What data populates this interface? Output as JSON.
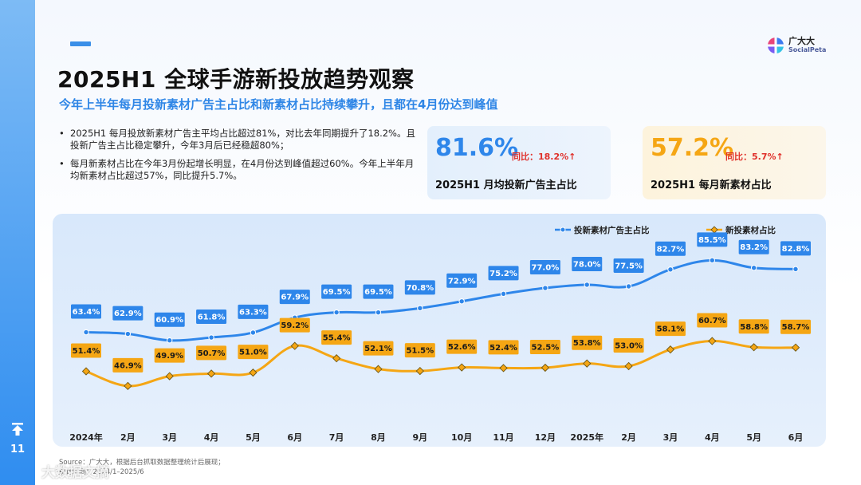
{
  "page": {
    "number": "11"
  },
  "header": {
    "title": "2025H1 全球手游新投放趋势观察",
    "subtitle": "今年上半年每月投新素材广告主占比和新素材占比持续攀升，且都在4月份达到峰值"
  },
  "logo": {
    "cn": "广大大",
    "en": "SocialPeta"
  },
  "bullets": [
    "2025H1 每月投放新素材广告主平均占比超过81%，对比去年同期提升了18.2%。且投新广告主占比稳定攀升，今年3月后已经稳超80%；",
    "每月新素材占比在今年3月份起增长明显，在4月份达到峰值超过60%。今年上半年月均新素材占比超过57%，同比提升5.7%。"
  ],
  "cards": [
    {
      "value": "81.6%",
      "yoy": "同比：18.2%↑",
      "label": "2025H1 月均投新广告主占比"
    },
    {
      "value": "57.2%",
      "yoy": "同比：5.7%↑",
      "label": "2025H1 每月新素材占比"
    }
  ],
  "source": {
    "line1": "Source：广大大，根据后台抓取数据整理统计后展现；",
    "line2": "统计时间：2024/1–2025/6"
  },
  "watermark": "大数据文摘",
  "colors": {
    "blue": "#2e86ea",
    "orange": "#f5a614"
  },
  "chart_data": {
    "type": "line",
    "categories": [
      "2024年",
      "2月",
      "3月",
      "4月",
      "5月",
      "6月",
      "7月",
      "8月",
      "9月",
      "10月",
      "11月",
      "12月",
      "2025年",
      "2月",
      "3月",
      "4月",
      "5月",
      "6月"
    ],
    "series": [
      {
        "name": "投新素材广告主占比",
        "marker": "circle",
        "values": [
          63.4,
          62.9,
          60.9,
          61.8,
          63.3,
          67.9,
          69.5,
          69.5,
          70.8,
          72.9,
          75.2,
          77.0,
          78.0,
          77.5,
          82.7,
          85.5,
          83.2,
          82.8
        ],
        "labels": [
          "63.4%",
          "62.9%",
          "60.9%",
          "61.8%",
          "63.3%",
          "67.9%",
          "69.5%",
          "69.5%",
          "70.8%",
          "72.9%",
          "75.2%",
          "77.0%",
          "78.0%",
          "77.5%",
          "82.7%",
          "85.5%",
          "83.2%",
          "82.8%"
        ]
      },
      {
        "name": "新投素材占比",
        "marker": "diamond",
        "values": [
          51.4,
          46.9,
          49.9,
          50.7,
          51.0,
          59.2,
          55.4,
          52.1,
          51.5,
          52.6,
          52.4,
          52.5,
          53.8,
          53.0,
          58.1,
          60.7,
          58.8,
          58.7
        ],
        "labels": [
          "51.4%",
          "46.9%",
          "49.9%",
          "50.7%",
          "51.0%",
          "59.2%",
          "55.4%",
          "52.1%",
          "51.5%",
          "52.6%",
          "52.4%",
          "52.5%",
          "53.8%",
          "53.0%",
          "58.1%",
          "60.7%",
          "58.8%",
          "58.7%"
        ]
      }
    ],
    "legend_position": "top-right",
    "grid": false,
    "ylim": [
      40,
      90
    ]
  }
}
